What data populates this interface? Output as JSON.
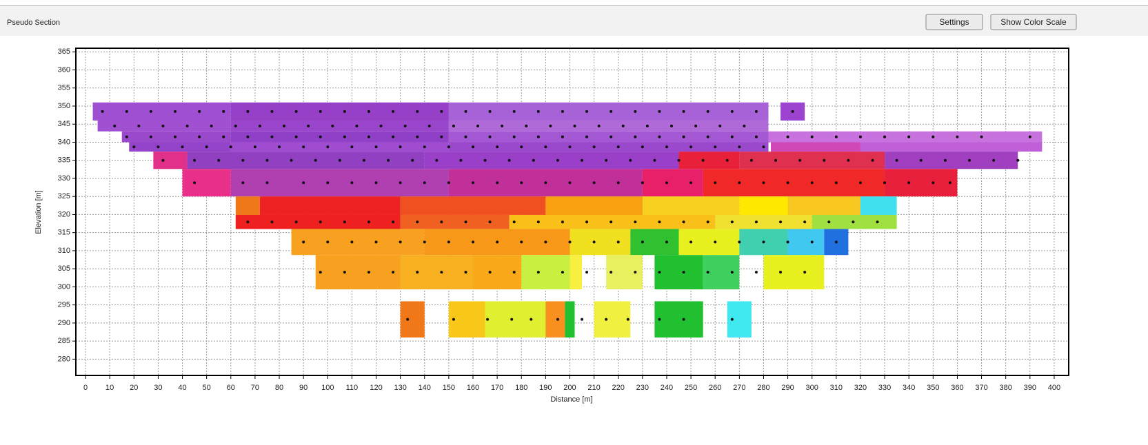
{
  "panel_title": "Pseudo Section",
  "buttons": [
    "Settings",
    "Show Color Scale"
  ],
  "chart_data": {
    "type": "pseudosection",
    "xlabel": "Distance [m]",
    "ylabel": "Elevation [m]",
    "xlim": [
      -4,
      406
    ],
    "ylim": [
      275.5,
      366
    ],
    "xticks": [
      0,
      10,
      20,
      30,
      40,
      50,
      60,
      70,
      80,
      90,
      100,
      110,
      120,
      130,
      140,
      150,
      160,
      170,
      180,
      190,
      200,
      210,
      220,
      230,
      240,
      250,
      260,
      270,
      280,
      290,
      300,
      310,
      320,
      330,
      340,
      350,
      360,
      370,
      380,
      390,
      400
    ],
    "yticks": [
      280,
      285,
      290,
      295,
      300,
      305,
      310,
      315,
      320,
      325,
      330,
      335,
      340,
      345,
      350,
      355,
      360,
      365
    ],
    "grid": true,
    "point_color": "#111111",
    "rows": [
      {
        "elevation": [
          346,
          351
        ],
        "cells": [
          [
            3,
            60,
            "#9f4fd2"
          ],
          [
            60,
            150,
            "#9640c8"
          ],
          [
            150,
            282,
            "#a862d8"
          ],
          [
            287,
            297,
            "#9c44d0"
          ]
        ],
        "points": [
          7,
          17,
          27,
          37,
          47,
          57,
          67,
          77,
          87,
          97,
          107,
          117,
          127,
          137,
          147,
          157,
          167,
          177,
          187,
          197,
          207,
          217,
          227,
          237,
          247,
          257,
          267,
          277,
          292
        ]
      },
      {
        "elevation": [
          343,
          346
        ],
        "cells": [
          [
            5,
            60,
            "#a050d0"
          ],
          [
            60,
            150,
            "#9a46cc"
          ],
          [
            150,
            282,
            "#b06ad8"
          ]
        ],
        "points": [
          12,
          22,
          32,
          42,
          52,
          62,
          72,
          82,
          92,
          102,
          112,
          122,
          132,
          142,
          152,
          162,
          172,
          182,
          192,
          202,
          212,
          222,
          232,
          242,
          252,
          262,
          272
        ]
      },
      {
        "elevation": [
          340,
          343
        ],
        "cells": [
          [
            15,
            60,
            "#9a48cc"
          ],
          [
            60,
            150,
            "#9040c6"
          ],
          [
            150,
            282,
            "#a458d4"
          ],
          [
            282,
            395,
            "#c872e0"
          ]
        ],
        "points": [
          17,
          27,
          37,
          47,
          57,
          67,
          77,
          87,
          97,
          107,
          117,
          127,
          137,
          147,
          157,
          167,
          177,
          187,
          197,
          207,
          217,
          227,
          237,
          247,
          257,
          267,
          277,
          290,
          300,
          310,
          320,
          330,
          340,
          350,
          360,
          370,
          390
        ]
      },
      {
        "elevation": [
          337.4,
          340
        ],
        "cells": [
          [
            18,
            60,
            "#9444c8"
          ],
          [
            60,
            150,
            "#a04cd0"
          ],
          [
            150,
            282,
            "#9a48cc"
          ],
          [
            283,
            320,
            "#d048b8"
          ],
          [
            320,
            395,
            "#c060d8"
          ]
        ],
        "points": [
          20,
          30,
          40,
          50,
          60,
          70,
          80,
          90,
          100,
          110,
          120,
          130,
          140,
          150,
          160,
          170,
          180,
          190,
          200,
          210,
          220,
          230,
          240,
          250,
          260,
          270,
          280
        ]
      },
      {
        "elevation": [
          332.6,
          337.4
        ],
        "cells": [
          [
            28,
            42,
            "#e0308a"
          ],
          [
            42,
            140,
            "#9040c0"
          ],
          [
            140,
            245,
            "#9a3fc8"
          ],
          [
            245,
            270,
            "#e8203a"
          ],
          [
            270,
            330,
            "#e03050"
          ],
          [
            330,
            385,
            "#a040c0"
          ]
        ],
        "points": [
          32,
          45,
          55,
          65,
          75,
          85,
          95,
          105,
          115,
          125,
          135,
          145,
          155,
          165,
          175,
          185,
          195,
          205,
          215,
          225,
          235,
          245,
          255,
          265,
          275,
          285,
          295,
          305,
          315,
          325,
          335,
          345,
          355,
          365,
          375,
          385
        ]
      },
      {
        "elevation": [
          325,
          332.6
        ],
        "cells": [
          [
            40,
            60,
            "#e8308a"
          ],
          [
            60,
            150,
            "#b040b0"
          ],
          [
            150,
            230,
            "#c03098"
          ],
          [
            230,
            255,
            "#e8206a"
          ],
          [
            255,
            330,
            "#f02828"
          ],
          [
            330,
            360,
            "#e8203c"
          ]
        ],
        "points": [
          45,
          65,
          75,
          90,
          100,
          110,
          120,
          130,
          140,
          150,
          160,
          170,
          180,
          190,
          200,
          210,
          220,
          230,
          240,
          250,
          260,
          270,
          280,
          290,
          300,
          310,
          320,
          330,
          340,
          350,
          357
        ]
      },
      {
        "elevation": [
          319.9,
          325
        ],
        "cells": [
          [
            62,
            72,
            "#f07818"
          ],
          [
            72,
            130,
            "#ee2222"
          ],
          [
            130,
            190,
            "#f05020"
          ],
          [
            190,
            230,
            "#f8a010"
          ],
          [
            230,
            270,
            "#f8d020"
          ],
          [
            270,
            290,
            "#ffe800"
          ],
          [
            290,
            320,
            "#f8c820"
          ],
          [
            320,
            335,
            "#40e0f0"
          ]
        ],
        "points": []
      },
      {
        "elevation": [
          316,
          319.9
        ],
        "cells": [
          [
            62,
            130,
            "#ee2020"
          ],
          [
            130,
            175,
            "#f06020"
          ],
          [
            175,
            260,
            "#f8c018"
          ],
          [
            260,
            300,
            "#f0e030"
          ],
          [
            300,
            335,
            "#a0e040"
          ]
        ],
        "points": [
          67,
          77,
          87,
          97,
          107,
          117,
          127,
          137,
          147,
          157,
          167,
          177,
          187,
          197,
          207,
          217,
          227,
          237,
          247,
          257,
          267,
          277,
          287,
          297,
          307,
          317,
          327
        ]
      },
      {
        "elevation": [
          308.8,
          316
        ],
        "cells": [
          [
            85,
            140,
            "#f8a020"
          ],
          [
            140,
            200,
            "#f89818"
          ],
          [
            200,
            225,
            "#f0e020"
          ],
          [
            225,
            245,
            "#30c030"
          ],
          [
            245,
            270,
            "#e8f020"
          ],
          [
            270,
            290,
            "#40d0b0"
          ],
          [
            290,
            305,
            "#40c8f0"
          ],
          [
            305,
            315,
            "#2070e0"
          ]
        ],
        "points": [
          90,
          100,
          110,
          120,
          130,
          140,
          150,
          160,
          170,
          180,
          190,
          200,
          210,
          220,
          230,
          240,
          250,
          260,
          270,
          280,
          290,
          300,
          310
        ]
      },
      {
        "elevation": [
          299.3,
          308.8
        ],
        "cells": [
          [
            95,
            130,
            "#f8a020"
          ],
          [
            130,
            160,
            "#f8b020"
          ],
          [
            160,
            180,
            "#f8a818"
          ],
          [
            180,
            200,
            "#c8f040"
          ],
          [
            200,
            205,
            "#f8f040"
          ],
          [
            215,
            230,
            "#e8f060"
          ],
          [
            235,
            255,
            "#20c030"
          ],
          [
            255,
            270,
            "#40d060"
          ],
          [
            280,
            305,
            "#e8f020"
          ]
        ],
        "points": [
          97,
          107,
          117,
          127,
          137,
          147,
          157,
          167,
          177,
          187,
          197,
          207,
          217,
          227,
          237,
          247,
          257,
          267,
          277,
          287,
          297
        ]
      },
      {
        "elevation": [
          286,
          296
        ],
        "cells": [
          [
            130,
            140,
            "#f07818"
          ],
          [
            150,
            165,
            "#f8c818"
          ],
          [
            165,
            190,
            "#e0f030"
          ],
          [
            190,
            198,
            "#f89020"
          ],
          [
            198,
            202,
            "#20c030"
          ],
          [
            210,
            225,
            "#f0f040"
          ],
          [
            235,
            255,
            "#20c030"
          ],
          [
            265,
            275,
            "#40e8f0"
          ]
        ],
        "points": [
          133,
          152,
          166,
          176,
          184,
          195,
          205,
          215,
          224,
          237,
          247,
          267
        ]
      }
    ]
  }
}
